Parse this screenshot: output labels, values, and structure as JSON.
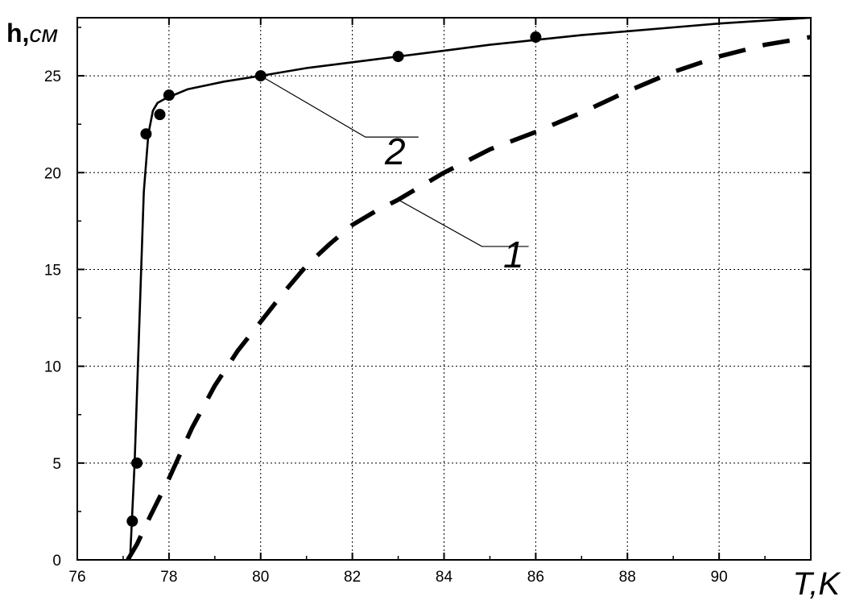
{
  "chart_data": {
    "type": "line",
    "xlabel": "T,K",
    "ylabel_main": "h,",
    "ylabel_unit": "см",
    "xlim": [
      76,
      92
    ],
    "ylim": [
      0,
      28
    ],
    "xticks": [
      76,
      78,
      80,
      82,
      84,
      86,
      88,
      90
    ],
    "yticks": [
      0,
      5,
      10,
      15,
      20,
      25
    ],
    "grid": true,
    "series": [
      {
        "label": "1",
        "style": "dashed",
        "x": [
          77.1,
          77.3,
          77.6,
          78.0,
          78.5,
          79.0,
          79.5,
          80.0,
          80.5,
          81.0,
          81.5,
          82.0,
          82.5,
          83.0,
          83.5,
          84.0,
          84.5,
          85.0,
          86.0,
          87.0,
          88.0,
          89.0,
          90.0,
          91.0,
          92.0
        ],
        "y": [
          0,
          0.8,
          2.3,
          4.2,
          6.8,
          9.0,
          10.8,
          12.3,
          13.8,
          15.2,
          16.3,
          17.3,
          18.0,
          18.6,
          19.3,
          20.0,
          20.6,
          21.2,
          22.1,
          23.1,
          24.2,
          25.2,
          26.0,
          26.6,
          27.0
        ],
        "label_anchor": [
          83.0,
          18.6
        ]
      },
      {
        "label": "2",
        "style": "solid",
        "x": [
          77.15,
          77.25,
          77.35,
          77.45,
          77.55,
          77.65,
          77.75,
          77.9,
          78.1,
          78.4,
          78.8,
          79.2,
          79.6,
          80.0,
          81.0,
          82.0,
          83.0,
          84.0,
          85.0,
          86.0,
          87.0,
          88.0,
          89.0,
          90.0,
          91.0,
          92.0
        ],
        "y": [
          0,
          5,
          12,
          19,
          22,
          23.2,
          23.6,
          23.8,
          24.0,
          24.3,
          24.5,
          24.7,
          24.85,
          25.0,
          25.4,
          25.7,
          26.0,
          26.3,
          26.6,
          26.85,
          27.1,
          27.3,
          27.5,
          27.7,
          27.85,
          28.0
        ],
        "label_anchor": [
          80.0,
          25.0
        ]
      }
    ],
    "points": {
      "x": [
        77.2,
        77.3,
        77.5,
        77.8,
        78.0,
        80.0,
        83.0,
        86.0
      ],
      "y": [
        2,
        5,
        22,
        23,
        24,
        25,
        26,
        27
      ]
    },
    "colors": {
      "line": "#000000",
      "grid": "#000000",
      "background": "#ffffff"
    }
  }
}
